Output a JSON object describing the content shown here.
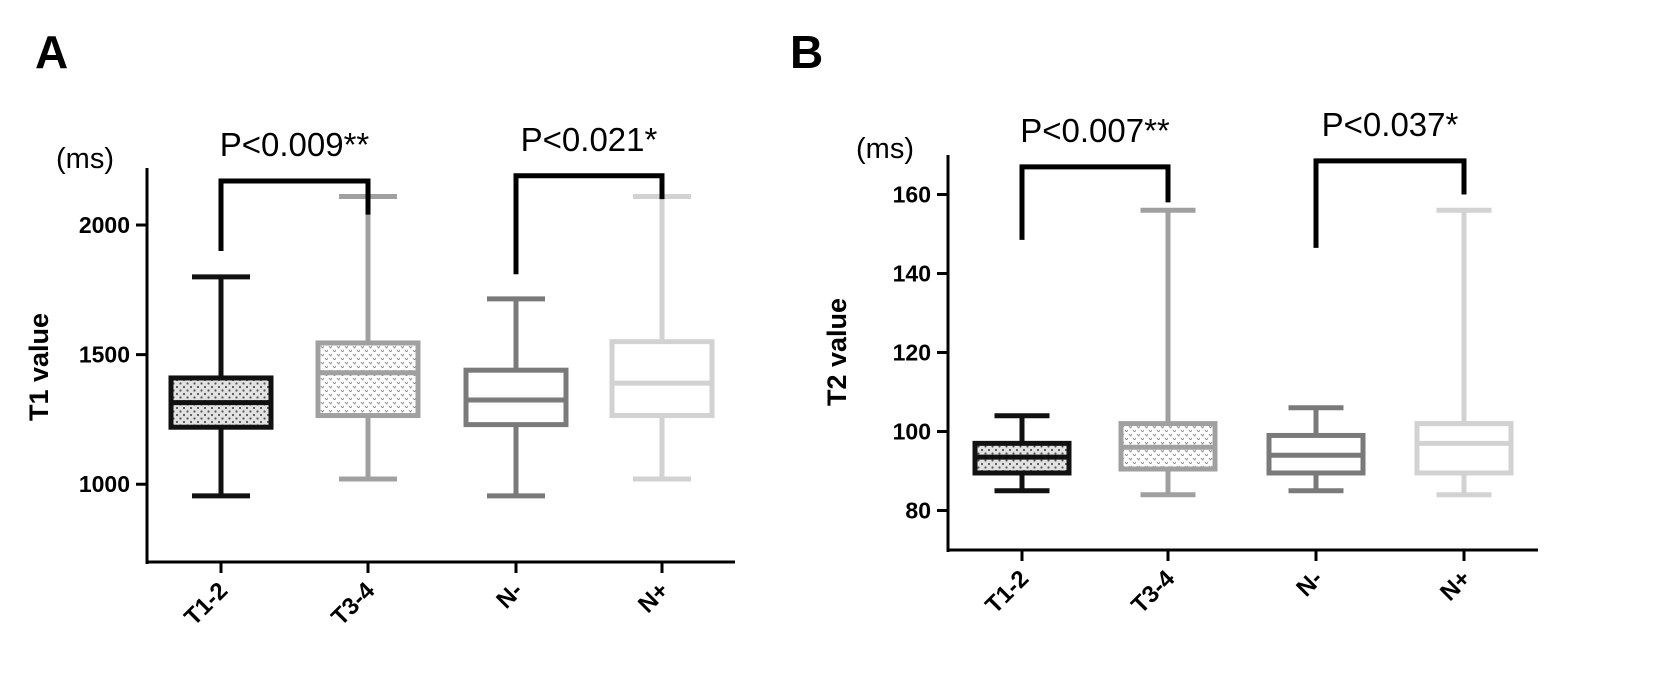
{
  "chart_data": [
    {
      "panel_label": "A",
      "type": "boxplot",
      "unit_label": "(ms)",
      "ylabel": "T1 value",
      "yticks": [
        1000,
        1500,
        2000
      ],
      "ylim": [
        700,
        2220
      ],
      "categories": [
        "T1-2",
        "T3-4",
        "N-",
        "N+"
      ],
      "boxes": [
        {
          "category": "T1-2",
          "min": 955,
          "q1": 1220,
          "median": 1315,
          "q3": 1410,
          "max": 1800,
          "color": "#111111",
          "fill": "dots"
        },
        {
          "category": "T3-4",
          "min": 1020,
          "q1": 1265,
          "median": 1430,
          "q3": 1545,
          "max": 2110,
          "color": "#a0a0a0",
          "fill": "dots"
        },
        {
          "category": "N-",
          "min": 955,
          "q1": 1230,
          "median": 1325,
          "q3": 1440,
          "max": 1715,
          "color": "#7a7a7a",
          "fill": "none"
        },
        {
          "category": "N+",
          "min": 1020,
          "q1": 1265,
          "median": 1390,
          "q3": 1550,
          "max": 2110,
          "color": "#d2d2d2",
          "fill": "none"
        }
      ],
      "comparisons": [
        {
          "pair": [
            "T1-2",
            "T3-4"
          ],
          "label": "P<0.009**",
          "bar_level": 2170,
          "left_drop": 1900,
          "right_drop": 2040
        },
        {
          "pair": [
            "N-",
            "N+"
          ],
          "label": "P<0.021*",
          "bar_level": 2190,
          "left_drop": 1810,
          "right_drop": 2100
        }
      ]
    },
    {
      "panel_label": "B",
      "type": "boxplot",
      "unit_label": "(ms)",
      "ylabel": "T2 value",
      "yticks": [
        80,
        100,
        120,
        140,
        160
      ],
      "ylim": [
        70,
        170
      ],
      "categories": [
        "T1-2",
        "T3-4",
        "N-",
        "N+"
      ],
      "boxes": [
        {
          "category": "T1-2",
          "min": 85,
          "q1": 89.5,
          "median": 93.5,
          "q3": 97,
          "max": 104,
          "color": "#111111",
          "fill": "dots"
        },
        {
          "category": "T3-4",
          "min": 84,
          "q1": 90.5,
          "median": 96,
          "q3": 102,
          "max": 156,
          "color": "#a0a0a0",
          "fill": "dots"
        },
        {
          "category": "N-",
          "min": 85,
          "q1": 89.5,
          "median": 94,
          "q3": 99,
          "max": 106,
          "color": "#7a7a7a",
          "fill": "none"
        },
        {
          "category": "N+",
          "min": 84,
          "q1": 89.5,
          "median": 97,
          "q3": 102,
          "max": 156,
          "color": "#d2d2d2",
          "fill": "none"
        }
      ],
      "comparisons": [
        {
          "pair": [
            "T1-2",
            "T3-4"
          ],
          "label": "P<0.007**",
          "bar_level": 167,
          "left_drop": 148.5,
          "right_drop": 158
        },
        {
          "pair": [
            "N-",
            "N+"
          ],
          "label": "P<0.037*",
          "bar_level": 168.5,
          "left_drop": 146.5,
          "right_drop": 160
        }
      ]
    }
  ]
}
